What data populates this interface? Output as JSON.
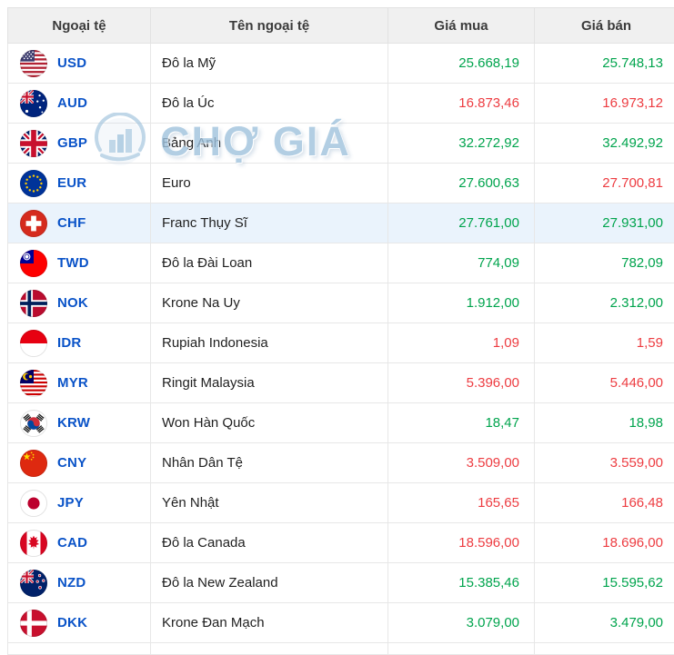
{
  "table": {
    "columns": [
      "Ngoại tệ",
      "Tên ngoại tệ",
      "Giá mua",
      "Giá bán"
    ]
  },
  "watermark": {
    "text": "CHỢ GIÁ",
    "logo_icon": "chogia-logo-icon"
  },
  "colors": {
    "up_green": "#00A44D",
    "down_red": "#ED3C41",
    "code_blue": "#0A53C8",
    "header_bg": "#F0F0F0",
    "row_border": "#E7E7E7",
    "highlight_bg": "#EAF3FC",
    "watermark_blue": "#9FC2DD"
  },
  "rows": [
    {
      "code": "USD",
      "flag": "us",
      "flag_icon": "usa-flag-icon",
      "name": "Đô la Mỹ",
      "buy": "25.668,19",
      "buy_trend": "up",
      "sell": "25.748,13",
      "sell_trend": "up"
    },
    {
      "code": "AUD",
      "flag": "au",
      "flag_icon": "australia-flag-icon",
      "name": "Đô la Úc",
      "buy": "16.873,46",
      "buy_trend": "down",
      "sell": "16.973,12",
      "sell_trend": "down"
    },
    {
      "code": "GBP",
      "flag": "gb",
      "flag_icon": "uk-flag-icon",
      "name": "Bảng Anh",
      "buy": "32.272,92",
      "buy_trend": "up",
      "sell": "32.492,92",
      "sell_trend": "up"
    },
    {
      "code": "EUR",
      "flag": "eu",
      "flag_icon": "eu-flag-icon",
      "name": "Euro",
      "buy": "27.600,63",
      "buy_trend": "up",
      "sell": "27.700,81",
      "sell_trend": "down"
    },
    {
      "code": "CHF",
      "flag": "ch",
      "flag_icon": "switzerland-flag-icon",
      "name": "Franc Thụy Sĩ",
      "buy": "27.761,00",
      "buy_trend": "up",
      "sell": "27.931,00",
      "sell_trend": "up",
      "highlighted": true
    },
    {
      "code": "TWD",
      "flag": "tw",
      "flag_icon": "taiwan-flag-icon",
      "name": "Đô la Đài Loan",
      "buy": "774,09",
      "buy_trend": "up",
      "sell": "782,09",
      "sell_trend": "up"
    },
    {
      "code": "NOK",
      "flag": "no",
      "flag_icon": "norway-flag-icon",
      "name": "Krone Na Uy",
      "buy": "1.912,00",
      "buy_trend": "up",
      "sell": "2.312,00",
      "sell_trend": "up"
    },
    {
      "code": "IDR",
      "flag": "id",
      "flag_icon": "indonesia-flag-icon",
      "name": "Rupiah Indonesia",
      "buy": "1,09",
      "buy_trend": "down",
      "sell": "1,59",
      "sell_trend": "down"
    },
    {
      "code": "MYR",
      "flag": "my",
      "flag_icon": "malaysia-flag-icon",
      "name": "Ringit Malaysia",
      "buy": "5.396,00",
      "buy_trend": "down",
      "sell": "5.446,00",
      "sell_trend": "down"
    },
    {
      "code": "KRW",
      "flag": "kr",
      "flag_icon": "south-korea-flag-icon",
      "name": "Won Hàn Quốc",
      "buy": "18,47",
      "buy_trend": "up",
      "sell": "18,98",
      "sell_trend": "up"
    },
    {
      "code": "CNY",
      "flag": "cn",
      "flag_icon": "china-flag-icon",
      "name": "Nhân Dân Tệ",
      "buy": "3.509,00",
      "buy_trend": "down",
      "sell": "3.559,00",
      "sell_trend": "down"
    },
    {
      "code": "JPY",
      "flag": "jp",
      "flag_icon": "japan-flag-icon",
      "name": "Yên Nhật",
      "buy": "165,65",
      "buy_trend": "down",
      "sell": "166,48",
      "sell_trend": "down"
    },
    {
      "code": "CAD",
      "flag": "ca",
      "flag_icon": "canada-flag-icon",
      "name": "Đô la Canada",
      "buy": "18.596,00",
      "buy_trend": "down",
      "sell": "18.696,00",
      "sell_trend": "down"
    },
    {
      "code": "NZD",
      "flag": "nz",
      "flag_icon": "new-zealand-flag-icon",
      "name": "Đô la New Zealand",
      "buy": "15.385,46",
      "buy_trend": "up",
      "sell": "15.595,62",
      "sell_trend": "up"
    },
    {
      "code": "DKK",
      "flag": "dk",
      "flag_icon": "denmark-flag-icon",
      "name": "Krone Đan Mạch",
      "buy": "3.079,00",
      "buy_trend": "up",
      "sell": "3.479,00",
      "sell_trend": "up"
    }
  ]
}
